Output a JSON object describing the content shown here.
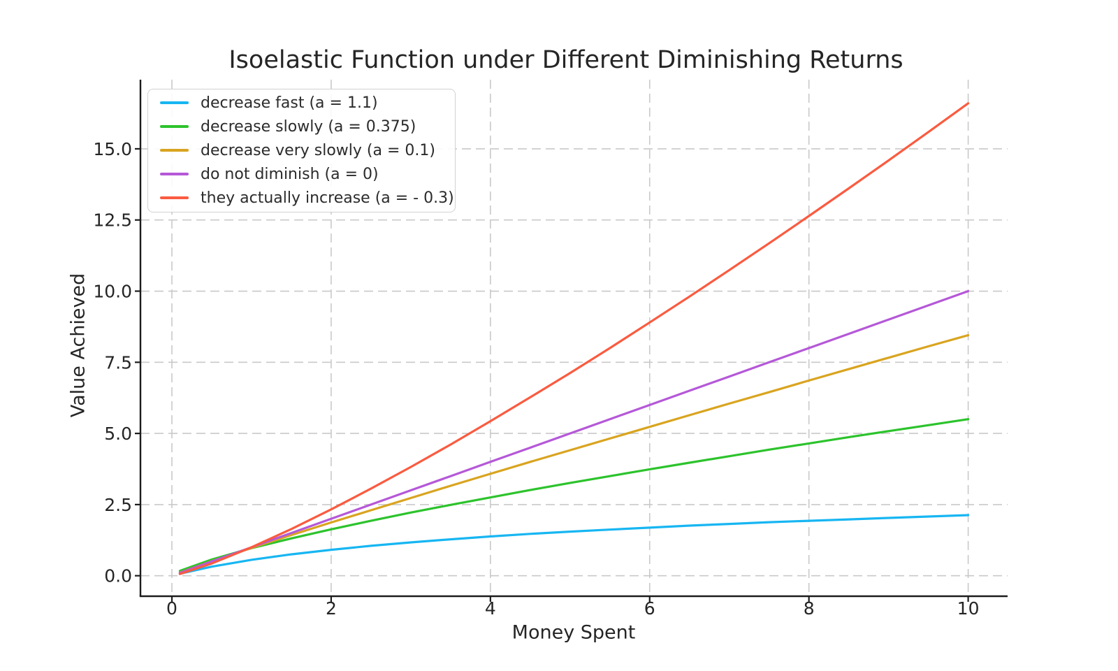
{
  "chart_data": {
    "type": "line",
    "title": "Isoelastic Function under Different Diminishing Returns",
    "xlabel": "Money Spent",
    "ylabel": "Value Achieved",
    "xlim": [
      -0.395,
      10.495
    ],
    "ylim": [
      -0.72,
      17.43
    ],
    "x_ticks": [
      0,
      2,
      4,
      6,
      8,
      10
    ],
    "x_tick_labels": [
      "0",
      "2",
      "4",
      "6",
      "8",
      "10"
    ],
    "y_ticks": [
      0,
      2.5,
      5,
      7.5,
      10,
      12.5,
      15
    ],
    "y_tick_labels": [
      "0.0",
      "2.5",
      "5.0",
      "7.5",
      "10.0",
      "12.5",
      "15.0"
    ],
    "grid": {
      "visible": true,
      "style": "dashed",
      "color": "#c9c9c9"
    },
    "legend_position": "upper left",
    "x": [
      0.1,
      0.5,
      1,
      1.5,
      2,
      2.5,
      3,
      3.5,
      4,
      4.5,
      5,
      5.5,
      6,
      6.5,
      7,
      7.5,
      8,
      8.5,
      9,
      9.5,
      10
    ],
    "series": [
      {
        "name": "decrease fast (a = 1.1)",
        "a": 1.1,
        "color": "#17b6f2",
        "values": [
          0.07,
          0.32,
          0.56,
          0.75,
          0.91,
          1.05,
          1.17,
          1.28,
          1.38,
          1.47,
          1.55,
          1.62,
          1.69,
          1.76,
          1.82,
          1.88,
          1.93,
          1.98,
          2.03,
          2.08,
          2.13
        ]
      },
      {
        "name": "decrease slowly (a = 0.375)",
        "a": 0.375,
        "color": "#2cc32c",
        "values": [
          0.17,
          0.57,
          0.97,
          1.31,
          1.63,
          1.93,
          2.22,
          2.49,
          2.75,
          3.01,
          3.26,
          3.5,
          3.74,
          3.97,
          4.2,
          4.43,
          4.65,
          4.87,
          5.08,
          5.29,
          5.5
        ]
      },
      {
        "name": "decrease very slowly (a = 0.1)",
        "a": 0.1,
        "color": "#d9a41f",
        "values": [
          0.11,
          0.51,
          0.98,
          1.43,
          1.87,
          2.3,
          2.73,
          3.16,
          3.58,
          4.0,
          4.41,
          4.82,
          5.23,
          5.64,
          6.05,
          6.45,
          6.86,
          7.26,
          7.66,
          8.06,
          8.45
        ]
      },
      {
        "name": "do not diminish (a = 0)",
        "a": 0,
        "color": "#b558d8",
        "values": [
          0.1,
          0.5,
          1,
          1.5,
          2,
          2.5,
          3,
          3.5,
          4,
          4.5,
          5,
          5.5,
          6,
          6.5,
          7,
          7.5,
          8,
          8.5,
          9,
          9.5,
          10
        ]
      },
      {
        "name": "they actually increase (a = - 0.3)",
        "a": -0.3,
        "color": "#fa5b40",
        "values": [
          0.06,
          0.43,
          1.0,
          1.64,
          2.33,
          3.06,
          3.82,
          4.61,
          5.43,
          6.27,
          7.12,
          8.0,
          8.9,
          9.81,
          10.74,
          11.68,
          12.64,
          13.61,
          14.59,
          15.59,
          16.6
        ]
      }
    ]
  }
}
